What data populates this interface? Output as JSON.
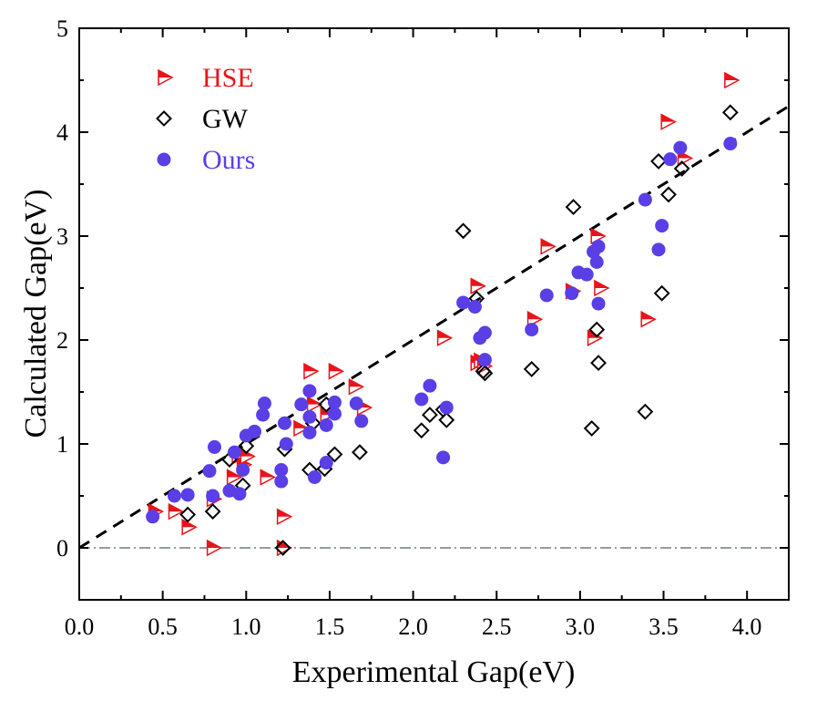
{
  "chart_data": {
    "type": "scatter",
    "title": "",
    "xlabel": "Experimental Gap(eV)",
    "ylabel": "Calculated Gap(eV)",
    "xlim": [
      0.0,
      4.25
    ],
    "ylim": [
      -0.5,
      5.0
    ],
    "xticks": [
      "0.0",
      "0.5",
      "1.0",
      "1.5",
      "2.0",
      "2.5",
      "3.0",
      "3.5",
      "4.0"
    ],
    "yticks": [
      "0",
      "1",
      "2",
      "3",
      "4",
      "5"
    ],
    "legend_position": "top-left",
    "colors": {
      "HSE": "#e8141b",
      "GW": "#000000",
      "Ours": "#5a3fe6",
      "diagonal": "#000000",
      "zero_line": "#6e7f78"
    },
    "reference_lines": [
      {
        "name": "y = x",
        "style": "dashed"
      },
      {
        "name": "y = 0",
        "style": "dash-dot"
      }
    ],
    "series": [
      {
        "name": "HSE",
        "marker": "right-triangle",
        "points": [
          [
            0.45,
            0.35
          ],
          [
            0.57,
            0.35
          ],
          [
            0.65,
            0.2
          ],
          [
            0.8,
            0.47
          ],
          [
            0.8,
            0.0
          ],
          [
            0.92,
            0.68
          ],
          [
            0.95,
            0.88
          ],
          [
            0.98,
            0.8
          ],
          [
            1.0,
            0.88
          ],
          [
            1.12,
            0.68
          ],
          [
            1.22,
            0.3
          ],
          [
            1.22,
            0.0
          ],
          [
            1.32,
            1.15
          ],
          [
            1.38,
            1.7
          ],
          [
            1.4,
            1.38
          ],
          [
            1.48,
            1.28
          ],
          [
            1.53,
            1.7
          ],
          [
            1.65,
            1.55
          ],
          [
            1.7,
            1.35
          ],
          [
            2.18,
            2.02
          ],
          [
            2.38,
            2.52
          ],
          [
            2.38,
            1.78
          ],
          [
            2.4,
            1.8
          ],
          [
            2.42,
            1.75
          ],
          [
            2.72,
            2.2
          ],
          [
            2.8,
            2.9
          ],
          [
            2.95,
            2.47
          ],
          [
            3.08,
            2.02
          ],
          [
            3.1,
            3.0
          ],
          [
            3.12,
            2.5
          ],
          [
            3.4,
            2.2
          ],
          [
            3.52,
            4.1
          ],
          [
            3.62,
            3.75
          ],
          [
            3.9,
            4.5
          ]
        ]
      },
      {
        "name": "GW",
        "marker": "diamond",
        "points": [
          [
            0.65,
            0.32
          ],
          [
            0.8,
            0.35
          ],
          [
            0.9,
            0.85
          ],
          [
            0.98,
            0.6
          ],
          [
            1.0,
            0.98
          ],
          [
            1.22,
            0.0
          ],
          [
            1.23,
            0.95
          ],
          [
            1.38,
            0.75
          ],
          [
            1.4,
            1.2
          ],
          [
            1.47,
            0.76
          ],
          [
            1.48,
            1.38
          ],
          [
            1.53,
            0.9
          ],
          [
            1.68,
            0.92
          ],
          [
            2.05,
            1.13
          ],
          [
            2.1,
            1.28
          ],
          [
            2.18,
            1.33
          ],
          [
            2.2,
            1.23
          ],
          [
            2.3,
            3.05
          ],
          [
            2.38,
            2.4
          ],
          [
            2.42,
            1.7
          ],
          [
            2.43,
            1.68
          ],
          [
            2.71,
            1.72
          ],
          [
            2.96,
            3.28
          ],
          [
            3.07,
            1.15
          ],
          [
            3.1,
            2.1
          ],
          [
            3.11,
            1.78
          ],
          [
            3.39,
            1.31
          ],
          [
            3.47,
            3.72
          ],
          [
            3.49,
            2.45
          ],
          [
            3.53,
            3.4
          ],
          [
            3.61,
            3.65
          ],
          [
            3.9,
            4.19
          ]
        ]
      },
      {
        "name": "Ours",
        "marker": "circle",
        "points": [
          [
            0.44,
            0.3
          ],
          [
            0.57,
            0.5
          ],
          [
            0.65,
            0.51
          ],
          [
            0.78,
            0.74
          ],
          [
            0.8,
            0.5
          ],
          [
            0.81,
            0.97
          ],
          [
            0.9,
            0.55
          ],
          [
            0.93,
            0.92
          ],
          [
            0.96,
            0.52
          ],
          [
            0.98,
            0.75
          ],
          [
            1.0,
            1.08
          ],
          [
            1.05,
            1.12
          ],
          [
            1.1,
            1.28
          ],
          [
            1.11,
            1.39
          ],
          [
            1.21,
            0.75
          ],
          [
            1.21,
            0.64
          ],
          [
            1.23,
            1.2
          ],
          [
            1.24,
            1.0
          ],
          [
            1.33,
            1.38
          ],
          [
            1.38,
            1.26
          ],
          [
            1.38,
            1.51
          ],
          [
            1.38,
            1.11
          ],
          [
            1.41,
            0.68
          ],
          [
            1.48,
            0.82
          ],
          [
            1.48,
            1.18
          ],
          [
            1.53,
            1.4
          ],
          [
            1.53,
            1.29
          ],
          [
            1.66,
            1.39
          ],
          [
            1.69,
            1.22
          ],
          [
            2.05,
            1.43
          ],
          [
            2.1,
            1.56
          ],
          [
            2.18,
            0.87
          ],
          [
            2.2,
            1.35
          ],
          [
            2.3,
            2.36
          ],
          [
            2.37,
            2.32
          ],
          [
            2.4,
            2.02
          ],
          [
            2.43,
            2.07
          ],
          [
            2.43,
            1.81
          ],
          [
            2.71,
            2.1
          ],
          [
            2.8,
            2.43
          ],
          [
            2.95,
            2.45
          ],
          [
            2.99,
            2.65
          ],
          [
            3.04,
            2.63
          ],
          [
            3.08,
            2.85
          ],
          [
            3.1,
            2.75
          ],
          [
            3.11,
            2.9
          ],
          [
            3.11,
            2.35
          ],
          [
            3.39,
            3.35
          ],
          [
            3.47,
            2.87
          ],
          [
            3.49,
            3.1
          ],
          [
            3.54,
            3.74
          ],
          [
            3.6,
            3.85
          ],
          [
            3.9,
            3.89
          ]
        ]
      }
    ]
  }
}
